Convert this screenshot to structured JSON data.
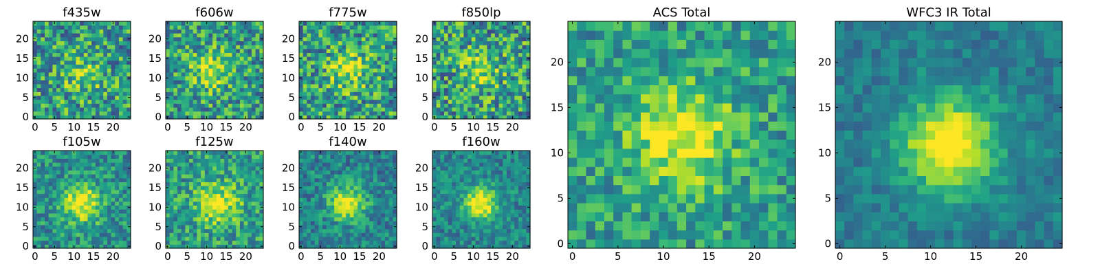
{
  "chart_data": {
    "type": "heatmap",
    "colormap": "viridis",
    "grid": false,
    "panels": [
      {
        "title": "f435w",
        "xlim": [
          0,
          24
        ],
        "ylim": [
          0,
          24
        ],
        "xticks": [
          0,
          5,
          10,
          15,
          20
        ],
        "yticks": [
          0,
          5,
          10,
          15,
          20
        ],
        "peak": [
          12,
          11
        ],
        "peak_amp": 0.25,
        "peak_sigma": 3.5,
        "noise": 0.32,
        "mean": 0.55,
        "seed": 11
      },
      {
        "title": "f606w",
        "xlim": [
          0,
          24
        ],
        "ylim": [
          0,
          24
        ],
        "xticks": [
          0,
          5,
          10,
          15,
          20
        ],
        "yticks": [
          0,
          5,
          10,
          15,
          20
        ],
        "peak": [
          11,
          12
        ],
        "peak_amp": 0.35,
        "peak_sigma": 3.5,
        "noise": 0.3,
        "mean": 0.55,
        "seed": 23
      },
      {
        "title": "f775w",
        "xlim": [
          0,
          24
        ],
        "ylim": [
          0,
          24
        ],
        "xticks": [
          0,
          5,
          10,
          15,
          20
        ],
        "yticks": [
          0,
          5,
          10,
          15,
          20
        ],
        "peak": [
          12,
          12
        ],
        "peak_amp": 0.35,
        "peak_sigma": 3.5,
        "noise": 0.32,
        "mean": 0.55,
        "seed": 37
      },
      {
        "title": "f850lp",
        "xlim": [
          0,
          24
        ],
        "ylim": [
          0,
          24
        ],
        "xticks": [
          0,
          5,
          10,
          15,
          20
        ],
        "yticks": [
          0,
          5,
          10,
          15,
          20
        ],
        "peak": [
          12,
          12
        ],
        "peak_amp": 0.3,
        "peak_sigma": 3.5,
        "noise": 0.34,
        "mean": 0.55,
        "seed": 41
      },
      {
        "title": "f105w",
        "xlim": [
          0,
          24
        ],
        "ylim": [
          0,
          24
        ],
        "xticks": [
          0,
          5,
          10,
          15,
          20
        ],
        "yticks": [
          0,
          5,
          10,
          15,
          20
        ],
        "peak": [
          12,
          11
        ],
        "peak_amp": 0.5,
        "peak_sigma": 3.5,
        "noise": 0.22,
        "mean": 0.5,
        "seed": 53
      },
      {
        "title": "f125w",
        "xlim": [
          0,
          24
        ],
        "ylim": [
          0,
          24
        ],
        "xticks": [
          0,
          5,
          10,
          15,
          20
        ],
        "yticks": [
          0,
          5,
          10,
          15,
          20
        ],
        "peak": [
          13,
          11
        ],
        "peak_amp": 0.4,
        "peak_sigma": 3.8,
        "noise": 0.24,
        "mean": 0.55,
        "seed": 67
      },
      {
        "title": "f140w",
        "xlim": [
          0,
          24
        ],
        "ylim": [
          0,
          24
        ],
        "xticks": [
          0,
          5,
          10,
          15,
          20
        ],
        "yticks": [
          0,
          5,
          10,
          15,
          20
        ],
        "peak": [
          12,
          11
        ],
        "peak_amp": 0.5,
        "peak_sigma": 3.2,
        "noise": 0.2,
        "mean": 0.45,
        "seed": 71
      },
      {
        "title": "f160w",
        "xlim": [
          0,
          24
        ],
        "ylim": [
          0,
          24
        ],
        "xticks": [
          0,
          5,
          10,
          15,
          20
        ],
        "yticks": [
          0,
          5,
          10,
          15,
          20
        ],
        "peak": [
          12,
          11
        ],
        "peak_amp": 0.6,
        "peak_sigma": 3.0,
        "noise": 0.18,
        "mean": 0.45,
        "seed": 83
      },
      {
        "title": "ACS Total",
        "xlim": [
          0,
          24
        ],
        "ylim": [
          0,
          24
        ],
        "xticks": [
          0,
          5,
          10,
          15,
          20
        ],
        "yticks": [
          0,
          5,
          10,
          15,
          20
        ],
        "peak": [
          12,
          12
        ],
        "peak_amp": 0.45,
        "peak_sigma": 4.0,
        "noise": 0.22,
        "mean": 0.55,
        "seed": 97
      },
      {
        "title": "WFC3 IR Total",
        "xlim": [
          0,
          24
        ],
        "ylim": [
          0,
          24
        ],
        "xticks": [
          0,
          5,
          10,
          15,
          20
        ],
        "yticks": [
          0,
          5,
          10,
          15,
          20
        ],
        "peak": [
          12,
          11
        ],
        "peak_amp": 0.65,
        "peak_sigma": 3.6,
        "noise": 0.12,
        "mean": 0.42,
        "seed": 101
      }
    ]
  }
}
